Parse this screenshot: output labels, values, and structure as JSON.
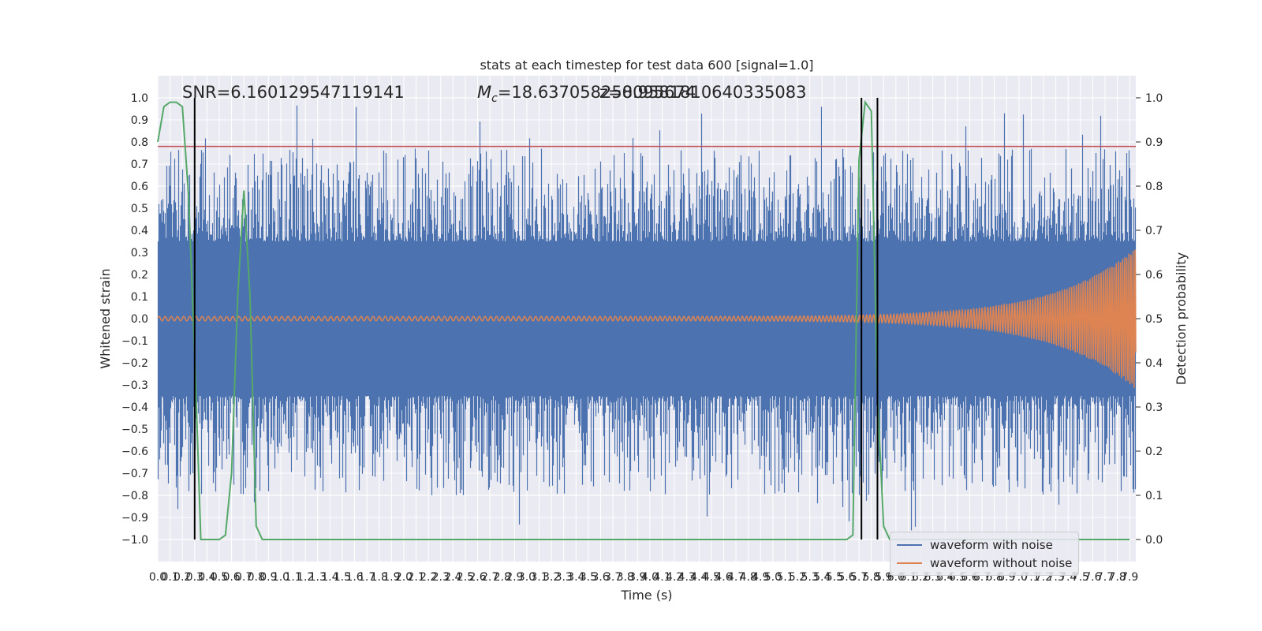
{
  "chart_data": {
    "type": "line",
    "title": "stats at each timestep for test data 600 [signal=1.0]",
    "xlabel": "Time (s)",
    "ylabel": "Whitened strain",
    "y2label": "Detection probability",
    "xlim": [
      0.0,
      7.95
    ],
    "ylim": [
      -1.1,
      1.1
    ],
    "y2lim": [
      -0.05,
      1.05
    ],
    "xticks": [
      0.0,
      0.1,
      0.2,
      0.3,
      0.4,
      0.5,
      0.6,
      0.7,
      0.8,
      0.9,
      1.0,
      1.1,
      1.2,
      1.3,
      1.4,
      1.5,
      1.6,
      1.7,
      1.8,
      1.9,
      2.0,
      2.1,
      2.2,
      2.3,
      2.4,
      2.5,
      2.6,
      2.7,
      2.8,
      2.9,
      3.0,
      3.1,
      3.2,
      3.3,
      3.4,
      3.5,
      3.6,
      3.7,
      3.8,
      3.9,
      4.0,
      4.1,
      4.2,
      4.3,
      4.4,
      4.5,
      4.6,
      4.7,
      4.8,
      4.9,
      5.0,
      5.1,
      5.2,
      5.3,
      5.4,
      5.5,
      5.6,
      5.7,
      5.8,
      5.9,
      6.0,
      6.1,
      6.2,
      6.3,
      6.4,
      6.5,
      6.6,
      6.7,
      6.8,
      6.9,
      7.0,
      7.1,
      7.2,
      7.3,
      7.4,
      7.5,
      7.6,
      7.7,
      7.8,
      7.9
    ],
    "yticks": [
      1.0,
      0.9,
      0.8,
      0.7,
      0.6,
      0.5,
      0.4,
      0.3,
      0.2,
      0.1,
      0.0,
      -0.1,
      -0.2,
      -0.3,
      -0.4,
      -0.5,
      -0.6,
      -0.7,
      -0.8,
      -0.9,
      -1.0
    ],
    "y2ticks": [
      1.0,
      0.9,
      0.8,
      0.7,
      0.6,
      0.5,
      0.4,
      0.3,
      0.2,
      0.1,
      0.0
    ],
    "grid": true,
    "legend_position": "lower right",
    "annotations": {
      "snr_text": "SNR=6.160129547119141",
      "mc_symbol": "M",
      "mc_subscript": "c",
      "mc_text": "=18.637058258095674",
      "overlap_text": "z=0.9581810640335083"
    },
    "series": [
      {
        "name": "waveform with noise",
        "color": "#4c72b0",
        "envelope": {
          "typical_abs": 0.35,
          "max": 0.97,
          "min": -1.0
        }
      },
      {
        "name": "waveform without noise",
        "color": "#dd8452",
        "chirp": {
          "start_amplitude": 0.01,
          "end_amplitude": 0.32,
          "start_freq_hz": 20,
          "end_freq_hz": 60
        }
      },
      {
        "color": "#55a868",
        "axis": "right",
        "x": [
          0.0,
          0.05,
          0.1,
          0.15,
          0.2,
          0.25,
          0.3,
          0.35,
          0.4,
          0.45,
          0.5,
          0.55,
          0.6,
          0.65,
          0.7,
          0.75,
          0.8,
          0.85,
          0.9,
          5.6,
          5.65,
          5.7,
          5.75,
          5.8,
          5.85,
          5.9,
          5.95,
          6.0,
          6.05,
          7.9
        ],
        "y": [
          0.9,
          0.98,
          0.99,
          0.99,
          0.98,
          0.78,
          0.42,
          0.0,
          0.0,
          0.0,
          0.0,
          0.01,
          0.15,
          0.55,
          0.79,
          0.55,
          0.03,
          0.0,
          0.0,
          0.0,
          0.01,
          0.86,
          0.99,
          0.97,
          0.32,
          0.03,
          0.0,
          0.0,
          0.0,
          0.0
        ]
      }
    ],
    "threshold": {
      "value": 0.78,
      "color": "#c44e52"
    },
    "vertical_markers": {
      "x": [
        0.3,
        5.72,
        5.85
      ],
      "color": "#000000"
    }
  }
}
